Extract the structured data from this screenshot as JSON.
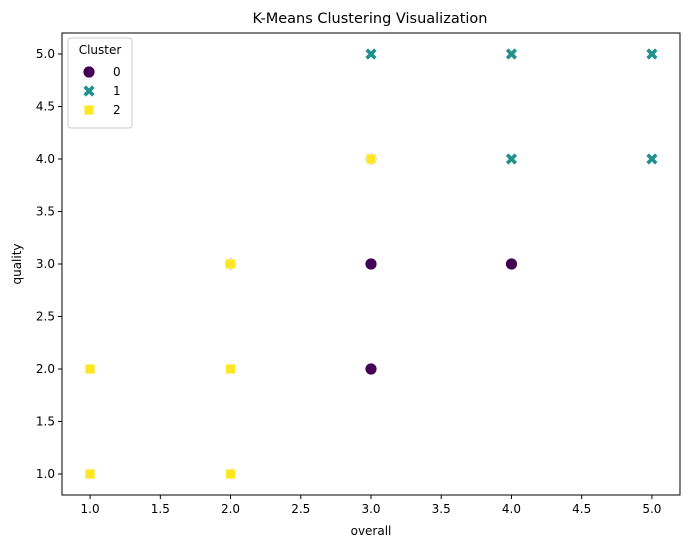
{
  "chart_data": {
    "type": "scatter",
    "title": "K-Means Clustering Visualization",
    "xlabel": "overall",
    "ylabel": "quality",
    "xlim": [
      0.8,
      5.2
    ],
    "ylim": [
      0.8,
      5.2
    ],
    "xticks": [
      "1.0",
      "1.5",
      "2.0",
      "2.5",
      "3.0",
      "3.5",
      "4.0",
      "4.5",
      "5.0"
    ],
    "yticks": [
      "1.0",
      "1.5",
      "2.0",
      "2.5",
      "3.0",
      "3.5",
      "4.0",
      "4.5",
      "5.0"
    ],
    "grid": false,
    "legend": {
      "title": "Cluster",
      "placement": "top-left"
    },
    "series": [
      {
        "name": "0",
        "marker": "circle",
        "color": "#440154",
        "points": [
          {
            "x": 3,
            "y": 4
          },
          {
            "x": 2,
            "y": 3
          },
          {
            "x": 3,
            "y": 3
          },
          {
            "x": 4,
            "y": 3
          },
          {
            "x": 3,
            "y": 2
          }
        ]
      },
      {
        "name": "1",
        "marker": "x",
        "color": "#21918c",
        "points": [
          {
            "x": 3,
            "y": 5
          },
          {
            "x": 4,
            "y": 5
          },
          {
            "x": 5,
            "y": 5
          },
          {
            "x": 4,
            "y": 4
          },
          {
            "x": 5,
            "y": 4
          }
        ]
      },
      {
        "name": "2",
        "marker": "square",
        "color": "#fde725",
        "points": [
          {
            "x": 3,
            "y": 4
          },
          {
            "x": 2,
            "y": 3
          },
          {
            "x": 1,
            "y": 2
          },
          {
            "x": 2,
            "y": 2
          },
          {
            "x": 1,
            "y": 1
          },
          {
            "x": 2,
            "y": 1
          }
        ]
      }
    ]
  }
}
